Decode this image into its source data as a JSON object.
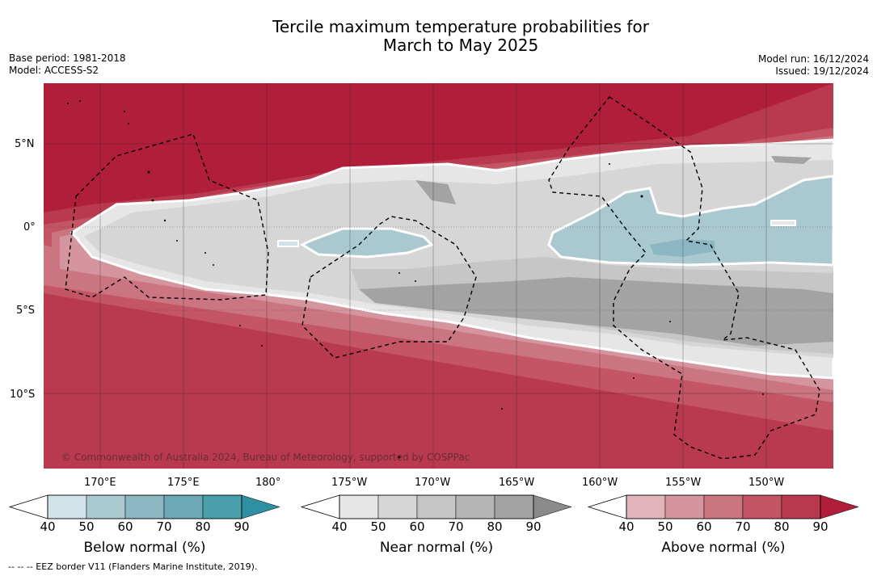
{
  "title_line1": "Tercile maximum temperature probabilities for",
  "title_line2": "March to May 2025",
  "meta_left": {
    "base_period": "Base period: 1981-2018",
    "model": "Model: ACCESS-S2"
  },
  "meta_right": {
    "model_run": "Model run: 16/12/2024",
    "issued": "Issued: 19/12/2024"
  },
  "latitude_labels": [
    "5°N",
    "0°",
    "5°S",
    "10°S"
  ],
  "longitude_labels": [
    "170°E",
    "175°E",
    "180°",
    "175°W",
    "170°W",
    "165°W",
    "160°W",
    "155°W",
    "150°W"
  ],
  "copyright": "© Commonwealth of Australia 2024, Bureau of Meteorology, supported by COSPPac",
  "colorbars": [
    {
      "title": "Below normal (%)",
      "ticks": [
        "40",
        "50",
        "60",
        "70",
        "80",
        "90"
      ],
      "colors": [
        "#cfe3e8",
        "#a9c8cf",
        "#8cb6c2",
        "#6aa9b5",
        "#4a9fad",
        "#2f8fa3"
      ]
    },
    {
      "title": "Near normal (%)",
      "ticks": [
        "40",
        "50",
        "60",
        "70",
        "80",
        "90"
      ],
      "colors": [
        "#e6e6e6",
        "#d6d6d6",
        "#c6c6c6",
        "#b5b5b5",
        "#a3a3a3",
        "#8a8a8a"
      ]
    },
    {
      "title": "Above normal (%)",
      "ticks": [
        "40",
        "50",
        "60",
        "70",
        "80",
        "90"
      ],
      "colors": [
        "#e0b4ba",
        "#d5959f",
        "#cb7580",
        "#c35565",
        "#b93a4e",
        "#b11e3a"
      ]
    }
  ],
  "footnote": "--  --  -- EEZ border V11 (Flanders Marine Institute, 2019)."
}
